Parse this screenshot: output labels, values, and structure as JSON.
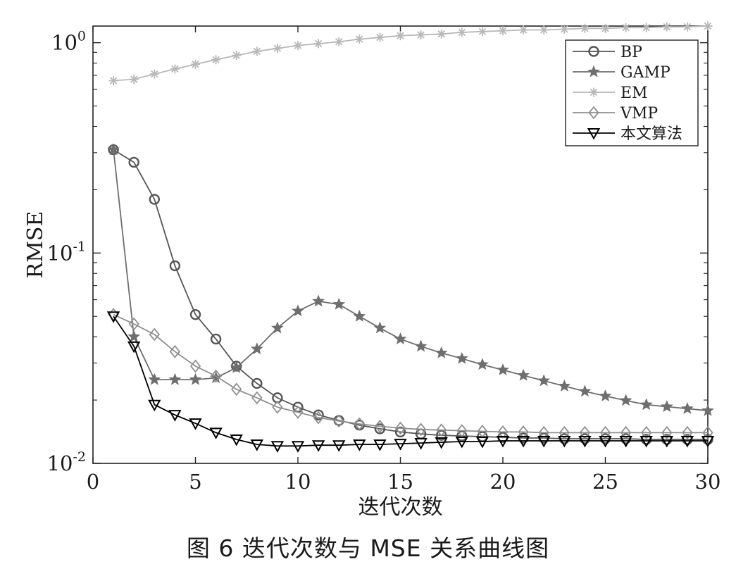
{
  "caption": "图 6   迭代次数与 MSE 关系曲线图",
  "chart_data": {
    "type": "line",
    "title": "",
    "xlabel": "迭代次数",
    "ylabel": "RMSE",
    "xlim": [
      0,
      30
    ],
    "ylim": [
      0.01,
      1.2
    ],
    "yscale": "log",
    "grid": false,
    "legend_position": "top-right",
    "x_ticks": [
      0,
      5,
      10,
      15,
      20,
      25,
      30
    ],
    "y_ticks": [
      {
        "value": 0.01,
        "base": "10",
        "exp": "-2"
      },
      {
        "value": 0.1,
        "base": "10",
        "exp": "-1"
      },
      {
        "value": 1,
        "base": "10",
        "exp": "0"
      }
    ],
    "x": [
      1,
      2,
      3,
      4,
      5,
      6,
      7,
      8,
      9,
      10,
      11,
      12,
      13,
      14,
      15,
      16,
      17,
      18,
      19,
      20,
      21,
      22,
      23,
      24,
      25,
      26,
      27,
      28,
      29,
      30
    ],
    "series": [
      {
        "name": "BP",
        "marker": "circle",
        "color": "#555555",
        "values": [
          0.31,
          0.27,
          0.18,
          0.087,
          0.051,
          0.039,
          0.029,
          0.024,
          0.0205,
          0.0185,
          0.017,
          0.016,
          0.0152,
          0.0146,
          0.0141,
          0.0138,
          0.0136,
          0.0135,
          0.0134,
          0.0133,
          0.0132,
          0.0132,
          0.0131,
          0.0131,
          0.0131,
          0.0131,
          0.013,
          0.013,
          0.013,
          0.013
        ]
      },
      {
        "name": "GAMP",
        "marker": "star",
        "color": "#6e6e6e",
        "values": [
          0.31,
          0.04,
          0.025,
          0.025,
          0.025,
          0.0255,
          0.0285,
          0.035,
          0.044,
          0.053,
          0.059,
          0.057,
          0.05,
          0.044,
          0.039,
          0.036,
          0.0335,
          0.0315,
          0.0295,
          0.0278,
          0.0262,
          0.0247,
          0.0233,
          0.022,
          0.0209,
          0.0199,
          0.019,
          0.0186,
          0.0182,
          0.0178
        ]
      },
      {
        "name": "EM",
        "marker": "asterisk",
        "color": "#b8b8b8",
        "values": [
          0.66,
          0.67,
          0.71,
          0.75,
          0.79,
          0.83,
          0.87,
          0.91,
          0.94,
          0.97,
          0.99,
          1.01,
          1.04,
          1.06,
          1.08,
          1.09,
          1.1,
          1.12,
          1.13,
          1.14,
          1.15,
          1.15,
          1.16,
          1.17,
          1.17,
          1.18,
          1.18,
          1.19,
          1.19,
          1.2
        ]
      },
      {
        "name": "VMP",
        "marker": "diamond",
        "color": "#8f8f8f",
        "values": [
          0.051,
          0.046,
          0.041,
          0.034,
          0.029,
          0.026,
          0.0225,
          0.0205,
          0.0185,
          0.0175,
          0.0165,
          0.0159,
          0.0154,
          0.015,
          0.0147,
          0.0145,
          0.0144,
          0.0143,
          0.0142,
          0.0141,
          0.0141,
          0.014,
          0.014,
          0.014,
          0.014,
          0.014,
          0.014,
          0.014,
          0.014,
          0.014
        ]
      },
      {
        "name": "本文算法",
        "marker": "triangle-down",
        "color": "#000000",
        "values": [
          0.05,
          0.036,
          0.019,
          0.017,
          0.0155,
          0.014,
          0.013,
          0.0123,
          0.0121,
          0.0121,
          0.0122,
          0.0122,
          0.0123,
          0.0123,
          0.0124,
          0.0125,
          0.0126,
          0.0127,
          0.0127,
          0.0128,
          0.0128,
          0.0128,
          0.0128,
          0.0128,
          0.0128,
          0.0128,
          0.0128,
          0.0128,
          0.0128,
          0.0128
        ]
      }
    ]
  }
}
